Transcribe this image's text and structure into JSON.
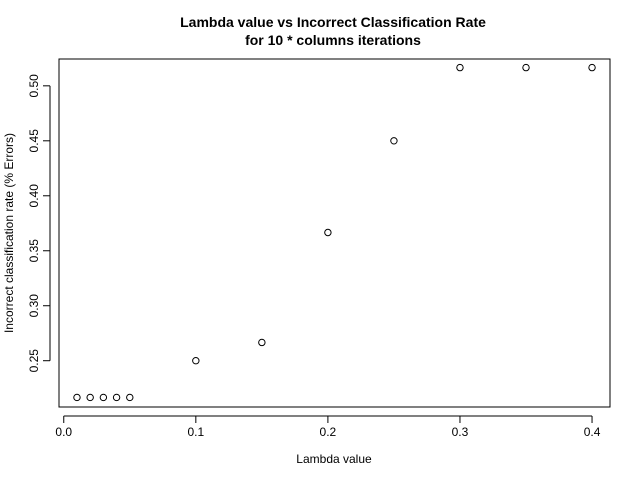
{
  "chart_data": {
    "type": "scatter",
    "title": "Lambda value vs Incorrect Classification Rate",
    "subtitle": "for 10 * columns iterations",
    "xlabel": "Lambda value",
    "ylabel": "Incorrect classification rate (% Errors)",
    "xlim": [
      -0.0036,
      0.4136
    ],
    "ylim": [
      0.2079,
      0.5244
    ],
    "xticks": [
      0.0,
      0.1,
      0.2,
      0.3,
      0.4
    ],
    "xtick_labels": [
      "0.0",
      "0.1",
      "0.2",
      "0.3",
      "0.4"
    ],
    "yticks": [
      0.25,
      0.3,
      0.35,
      0.4,
      0.45,
      0.5
    ],
    "ytick_labels": [
      "0.25",
      "0.30",
      "0.35",
      "0.40",
      "0.45",
      "0.50"
    ],
    "grid": false,
    "x": [
      0.01,
      0.02,
      0.03,
      0.04,
      0.05,
      0.1,
      0.15,
      0.2,
      0.25,
      0.3,
      0.35,
      0.4
    ],
    "y": [
      0.2166,
      0.2166,
      0.2166,
      0.2166,
      0.2166,
      0.25,
      0.2666,
      0.3666,
      0.45,
      0.5166,
      0.5166,
      0.5166
    ],
    "marker": "open-circle",
    "marker_color": "#000000"
  }
}
